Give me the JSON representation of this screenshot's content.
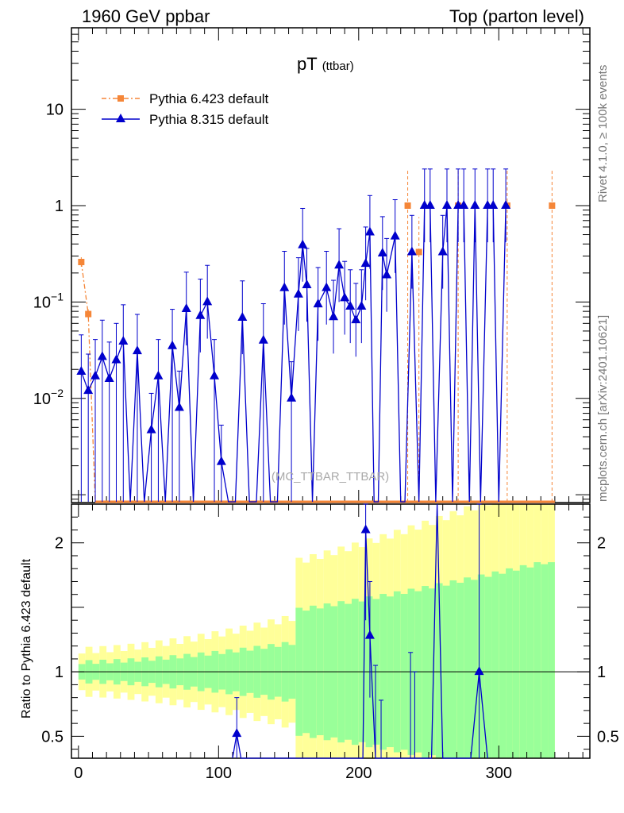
{
  "header": {
    "left": "1960 GeV ppbar",
    "right": "Top (parton level)"
  },
  "side": {
    "rivet": "Rivet 4.1.0, ≥ 100k events",
    "mcplots": "mcplots.cern.ch [arXiv:2401.10621]"
  },
  "colors": {
    "pythia6": "#f58638",
    "pythia8": "#0000cc",
    "band_inner": "#99ff99",
    "band_outer": "#ffff99"
  },
  "chart_data": {
    "type": "line",
    "title": "pT",
    "title_sub": "(ttbar)",
    "watermark": "(MC_TTBAR_TTBAR)",
    "xlim": [
      -5,
      365
    ],
    "main": {
      "yscale": "log",
      "ylim": [
        0.00083,
        70
      ],
      "yticks": [
        {
          "value": 10,
          "text": "10"
        },
        {
          "value": 1,
          "text": "1"
        },
        {
          "value": 0.1,
          "base": "10",
          "exp": "−1"
        },
        {
          "value": 0.01,
          "base": "10",
          "exp": "−2"
        }
      ]
    },
    "ratio": {
      "ylabel": "Ratio to Pythia 6.423 default",
      "ylim": [
        0.33,
        2.3
      ],
      "yticks": [
        {
          "value": 2,
          "text": "2"
        },
        {
          "value": 1,
          "text": "1"
        },
        {
          "value": 0.5,
          "text": "0.5"
        }
      ]
    },
    "xticks": [
      {
        "value": 0,
        "text": "0"
      },
      {
        "value": 100,
        "text": "100"
      },
      {
        "value": 200,
        "text": "200"
      },
      {
        "value": 300,
        "text": "300"
      }
    ],
    "series": [
      {
        "name": "Pythia 6.423 default",
        "marker": "square",
        "points": [
          {
            "x": 2,
            "y": 0.26
          },
          {
            "x": 7,
            "y": 0.075
          },
          {
            "x": 235,
            "y": 1.0
          },
          {
            "x": 243,
            "y": 0.33
          },
          {
            "x": 271,
            "y": 1.0
          },
          {
            "x": 306,
            "y": 1.0
          },
          {
            "x": 338,
            "y": 1.0
          }
        ]
      },
      {
        "name": "Pythia 8.315 default",
        "marker": "triangle",
        "points": [
          {
            "x": 2,
            "y": 0.019
          },
          {
            "x": 7,
            "y": 0.012
          },
          {
            "x": 12,
            "y": 0.017
          },
          {
            "x": 17,
            "y": 0.027
          },
          {
            "x": 22,
            "y": 0.016
          },
          {
            "x": 27,
            "y": 0.025
          },
          {
            "x": 32,
            "y": 0.039
          },
          {
            "x": 37,
            "y": null
          },
          {
            "x": 42,
            "y": 0.031
          },
          {
            "x": 47,
            "y": null
          },
          {
            "x": 52,
            "y": 0.0047
          },
          {
            "x": 57,
            "y": 0.017
          },
          {
            "x": 62,
            "y": null
          },
          {
            "x": 67,
            "y": 0.035
          },
          {
            "x": 72,
            "y": 0.008
          },
          {
            "x": 77,
            "y": 0.085
          },
          {
            "x": 82,
            "y": null
          },
          {
            "x": 87,
            "y": 0.072
          },
          {
            "x": 92,
            "y": 0.1
          },
          {
            "x": 97,
            "y": 0.017
          },
          {
            "x": 102,
            "y": 0.0022
          },
          {
            "x": 107,
            "y": null
          },
          {
            "x": 112,
            "y": null
          },
          {
            "x": 117,
            "y": 0.069
          },
          {
            "x": 122,
            "y": null
          },
          {
            "x": 127,
            "y": null
          },
          {
            "x": 132,
            "y": 0.04
          },
          {
            "x": 137,
            "y": null
          },
          {
            "x": 142,
            "y": null
          },
          {
            "x": 147,
            "y": 0.14
          },
          {
            "x": 152,
            "y": 0.01
          },
          {
            "x": 157,
            "y": 0.12
          },
          {
            "x": 160,
            "y": 0.39
          },
          {
            "x": 163,
            "y": 0.15
          },
          {
            "x": 167,
            "y": null
          },
          {
            "x": 171,
            "y": 0.095
          },
          {
            "x": 177,
            "y": 0.14
          },
          {
            "x": 182,
            "y": 0.07
          },
          {
            "x": 186,
            "y": 0.24
          },
          {
            "x": 190,
            "y": 0.11
          },
          {
            "x": 194,
            "y": 0.09
          },
          {
            "x": 198,
            "y": 0.065
          },
          {
            "x": 202,
            "y": 0.09
          },
          {
            "x": 205,
            "y": 0.25
          },
          {
            "x": 208,
            "y": 0.53
          },
          {
            "x": 211,
            "y": null
          },
          {
            "x": 214,
            "y": null
          },
          {
            "x": 217,
            "y": 0.32
          },
          {
            "x": 220,
            "y": 0.19
          },
          {
            "x": 226,
            "y": 0.48
          },
          {
            "x": 230,
            "y": null
          },
          {
            "x": 233,
            "y": null
          },
          {
            "x": 238,
            "y": 0.33
          },
          {
            "x": 243,
            "y": null
          },
          {
            "x": 247,
            "y": 1.0
          },
          {
            "x": 251,
            "y": 1.0
          },
          {
            "x": 255,
            "y": null
          },
          {
            "x": 260,
            "y": 0.33
          },
          {
            "x": 263,
            "y": 1.0
          },
          {
            "x": 267,
            "y": null
          },
          {
            "x": 271,
            "y": 1.0
          },
          {
            "x": 275,
            "y": 1.0
          },
          {
            "x": 279,
            "y": null
          },
          {
            "x": 283,
            "y": 1.0
          },
          {
            "x": 287,
            "y": null
          },
          {
            "x": 292,
            "y": 1.0
          },
          {
            "x": 296,
            "y": 1.0
          },
          {
            "x": 300,
            "y": null
          },
          {
            "x": 305,
            "y": 1.0
          }
        ]
      }
    ],
    "ratio_points": [
      {
        "x": 113,
        "y": 0.52
      },
      {
        "x": 205,
        "y": 2.1
      },
      {
        "x": 208,
        "y": 1.28
      },
      {
        "x": 256,
        "y": 2.3
      },
      {
        "x": 286,
        "y": 1.0
      }
    ],
    "legend_position": "top-left"
  }
}
